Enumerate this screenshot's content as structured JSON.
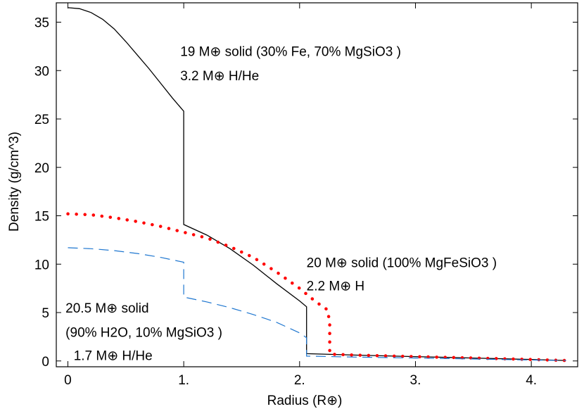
{
  "chart_data": {
    "type": "line",
    "xlabel": "Radius (R⊕)",
    "ylabel": "Density (g/cm^3)",
    "xlim": [
      -0.1,
      4.4
    ],
    "ylim": [
      -0.6,
      37
    ],
    "x_ticks": [
      {
        "value": 0,
        "label": "0"
      },
      {
        "value": 1,
        "label": "1."
      },
      {
        "value": 2,
        "label": "2."
      },
      {
        "value": 3,
        "label": "3."
      },
      {
        "value": 4,
        "label": "4."
      }
    ],
    "y_ticks": [
      {
        "value": 0,
        "label": "0"
      },
      {
        "value": 5,
        "label": "5"
      },
      {
        "value": 10,
        "label": "10"
      },
      {
        "value": 15,
        "label": "15"
      },
      {
        "value": 20,
        "label": "20"
      },
      {
        "value": 25,
        "label": "25"
      },
      {
        "value": 30,
        "label": "30"
      },
      {
        "value": 35,
        "label": "35"
      }
    ],
    "grid": false,
    "series": [
      {
        "color": "#000000",
        "style": "solid",
        "points": [
          [
            0,
            36.5
          ],
          [
            0.1,
            36.4
          ],
          [
            0.2,
            36.0
          ],
          [
            0.3,
            35.3
          ],
          [
            0.4,
            34.3
          ],
          [
            0.5,
            33.0
          ],
          [
            0.6,
            31.6
          ],
          [
            0.7,
            30.2
          ],
          [
            0.8,
            28.7
          ],
          [
            0.9,
            27.2
          ],
          [
            1.0,
            25.8
          ],
          [
            1.0,
            14.1
          ],
          [
            1.2,
            13.0
          ],
          [
            1.4,
            11.6
          ],
          [
            1.6,
            9.9
          ],
          [
            1.8,
            8.0
          ],
          [
            2.0,
            6.2
          ],
          [
            2.06,
            5.6
          ],
          [
            2.06,
            0.75
          ],
          [
            2.5,
            0.6
          ],
          [
            3.0,
            0.45
          ],
          [
            3.5,
            0.3
          ],
          [
            4.0,
            0.15
          ],
          [
            4.3,
            0.05
          ]
        ]
      },
      {
        "color": "#ff0000",
        "style": "dotted",
        "points": [
          [
            0,
            15.2
          ],
          [
            0.2,
            15.1
          ],
          [
            0.4,
            14.8
          ],
          [
            0.6,
            14.4
          ],
          [
            0.8,
            13.9
          ],
          [
            1.0,
            13.3
          ],
          [
            1.2,
            12.7
          ],
          [
            1.4,
            11.8
          ],
          [
            1.6,
            10.7
          ],
          [
            1.8,
            9.2
          ],
          [
            2.0,
            7.5
          ],
          [
            2.1,
            6.5
          ],
          [
            2.2,
            5.6
          ],
          [
            2.24,
            5.3
          ],
          [
            2.26,
            4.0
          ],
          [
            2.26,
            0.7
          ],
          [
            2.5,
            0.6
          ],
          [
            3.0,
            0.45
          ],
          [
            3.5,
            0.3
          ],
          [
            4.0,
            0.15
          ],
          [
            4.3,
            0.05
          ]
        ]
      },
      {
        "color": "#1f77d0",
        "style": "dashed",
        "points": [
          [
            0,
            11.7
          ],
          [
            0.2,
            11.6
          ],
          [
            0.4,
            11.4
          ],
          [
            0.6,
            11.1
          ],
          [
            0.8,
            10.7
          ],
          [
            1.0,
            10.2
          ],
          [
            1.0,
            6.6
          ],
          [
            1.2,
            6.1
          ],
          [
            1.4,
            5.5
          ],
          [
            1.6,
            4.8
          ],
          [
            1.8,
            4.0
          ],
          [
            2.0,
            2.9
          ],
          [
            2.06,
            2.4
          ],
          [
            2.06,
            0.5
          ],
          [
            2.5,
            0.4
          ],
          [
            3.0,
            0.3
          ],
          [
            3.5,
            0.2
          ],
          [
            4.0,
            0.1
          ],
          [
            4.3,
            0.05
          ]
        ]
      }
    ],
    "annotations": [
      {
        "x": 0.97,
        "y": 31.5,
        "text": "19 M⊕ solid (30% Fe, 70% MgSiO3 )"
      },
      {
        "x": 0.97,
        "y": 29.0,
        "text": "3.2 M⊕ H/He"
      },
      {
        "x": 2.06,
        "y": 9.7,
        "text": "20 M⊕ solid (100% MgFeSiO3 )"
      },
      {
        "x": 2.06,
        "y": 7.3,
        "text": "2.2 M⊕ H"
      },
      {
        "x": -0.02,
        "y": 5.0,
        "text": "20.5 M⊕ solid"
      },
      {
        "x": -0.02,
        "y": 2.5,
        "text": "(90% H2O, 10% MgSiO3 )"
      },
      {
        "x": 0.05,
        "y": 0.1,
        "text": "1.7 M⊕ H/He"
      }
    ]
  }
}
